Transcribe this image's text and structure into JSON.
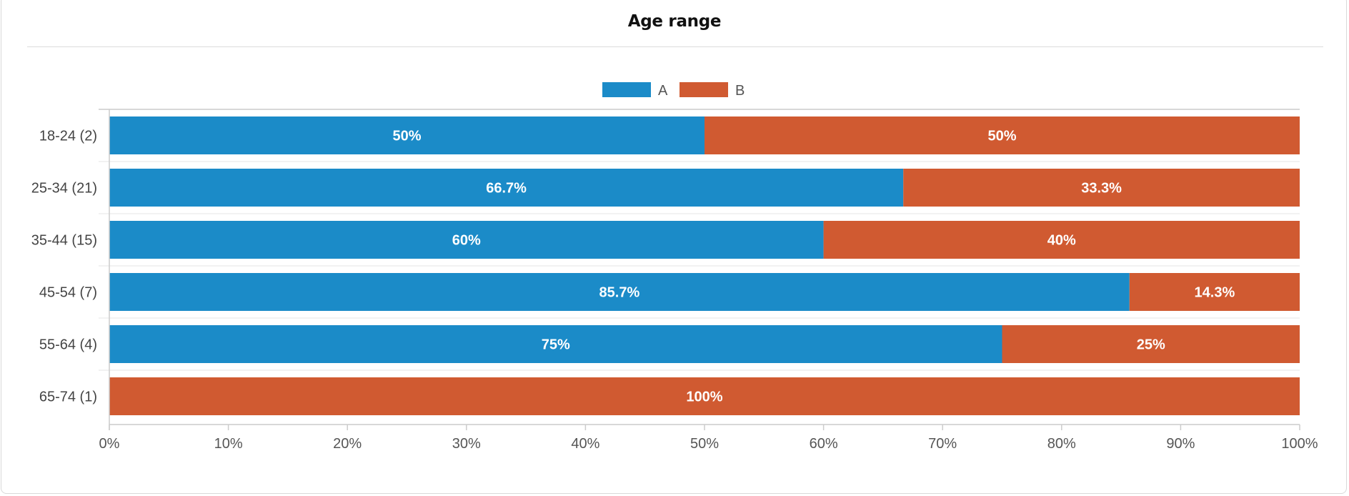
{
  "card": {
    "title": "Age range"
  },
  "colors": {
    "A": "#1b8bc8",
    "B": "#d05a31",
    "axis": "#cccccc",
    "grid": "#e6e6e6"
  },
  "chart_data": {
    "type": "bar",
    "orientation": "horizontal",
    "stacked": true,
    "percent_stacked": true,
    "categories": [
      "18-24 (2)",
      "25-34 (21)",
      "35-44 (15)",
      "45-54 (7)",
      "55-64 (4)",
      "65-74 (1)"
    ],
    "series": [
      {
        "name": "A",
        "values": [
          50,
          66.7,
          60,
          85.7,
          75,
          0
        ],
        "labels": [
          "50%",
          "66.7%",
          "60%",
          "85.7%",
          "75%",
          ""
        ]
      },
      {
        "name": "B",
        "values": [
          50,
          33.3,
          40,
          14.3,
          25,
          100
        ],
        "labels": [
          "50%",
          "33.3%",
          "40%",
          "14.3%",
          "25%",
          "100%"
        ]
      }
    ],
    "title": "Age range",
    "xlabel": "",
    "ylabel": "",
    "xlim": [
      0,
      100
    ],
    "x_ticks": [
      "0%",
      "10%",
      "20%",
      "30%",
      "40%",
      "50%",
      "60%",
      "70%",
      "80%",
      "90%",
      "100%"
    ],
    "legend_position": "top-center",
    "grid": false
  }
}
